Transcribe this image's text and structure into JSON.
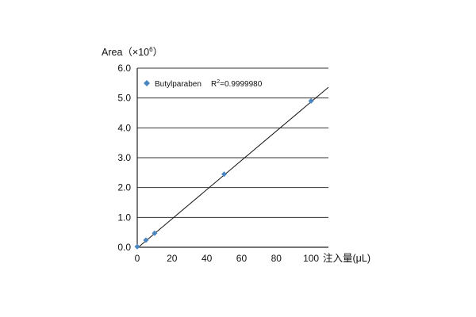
{
  "chart_data": {
    "type": "scatter",
    "ylabel": "Area（×10",
    "ylabel_exp": "6",
    "ylabel_close": "）",
    "xlabel": "注入量(μL)",
    "xlim": [
      0,
      110
    ],
    "ylim": [
      0,
      6.0
    ],
    "xticks": [
      0,
      20,
      40,
      60,
      80,
      100
    ],
    "yticks": [
      0.0,
      1.0,
      2.0,
      3.0,
      4.0,
      5.0,
      6.0
    ],
    "ytick_labels": [
      "0.0",
      "1.0",
      "2.0",
      "3.0",
      "4.0",
      "5.0",
      "6.0"
    ],
    "grid": "horizontal",
    "legend_position": "top-left",
    "series": [
      {
        "name": "Butylparaben",
        "marker": "diamond",
        "color": "#4a86c0",
        "x": [
          0,
          5,
          10,
          50,
          100
        ],
        "y": [
          0.02,
          0.24,
          0.47,
          2.45,
          4.9
        ]
      }
    ],
    "fit": {
      "label_prefix": "R",
      "label_exp": "2",
      "label_value": "=0.9999980",
      "x": [
        0,
        110
      ],
      "y": [
        -0.03,
        5.36
      ]
    }
  }
}
